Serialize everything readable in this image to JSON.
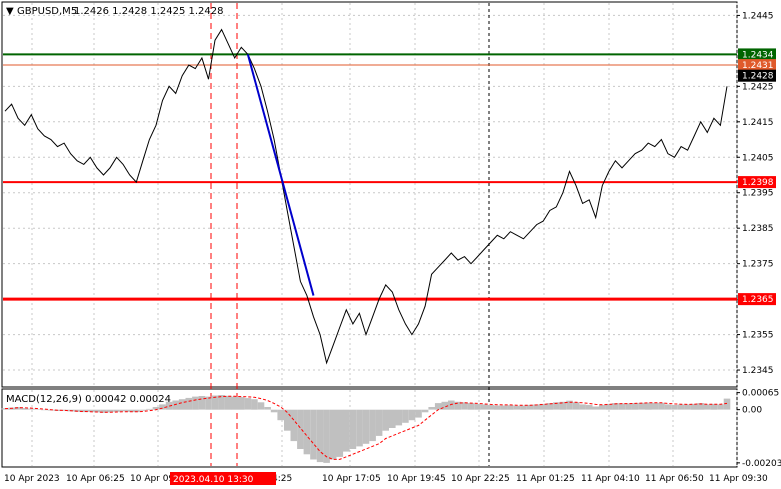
{
  "header": {
    "symbol": "GBPUSD,M5",
    "ohlc": "1.2426 1.2428 1.2425 1.2428"
  },
  "macd_panel": {
    "label": "MACD(12,26,9) 0.00042 0.00024"
  },
  "cursor_label": "2023.04.10 13:30",
  "colors": {
    "price_line": "#000000",
    "resistance_green": "#006400",
    "level_red": "#ff0000",
    "level_orange": "#e05a2b",
    "trend_blue": "#0000cc",
    "macd_hist": "#c0c0c0",
    "macd_signal": "#ff0000",
    "grid": "#c8c8c8"
  },
  "chart_data": [
    {
      "type": "line",
      "panel": "price",
      "y_ticks": [
        "1.2445",
        "1.2425",
        "1.2415",
        "1.2405",
        "1.2395",
        "1.2385",
        "1.2375",
        "1.2365",
        "1.2355",
        "1.2345"
      ],
      "x_ticks": [
        "10 Apr 2023",
        "10 Apr 06:25",
        "10 Apr 09:",
        "pr 14:25",
        "10 Apr 17:05",
        "10 Apr 19:45",
        "10 Apr 22:25",
        "11 Apr 01:25",
        "11 Apr 04:10",
        "11 Apr 06:50",
        "11 Apr 09:30"
      ],
      "ylim": [
        1.23405,
        1.24485
      ],
      "grid": true,
      "levels": [
        {
          "value": 1.2434,
          "label": "1.2434",
          "color": "#006400"
        },
        {
          "value": 1.2431,
          "label": "1.2431",
          "color": "#e05a2b"
        },
        {
          "value": 1.2428,
          "label": "1.2428",
          "color": "#000000"
        },
        {
          "value": 1.2398,
          "label": "1.2398",
          "color": "#ff0000"
        },
        {
          "value": 1.2365,
          "label": "1.2365",
          "color": "#ff0000"
        }
      ],
      "close_series": [
        1.2418,
        1.242,
        1.2416,
        1.2414,
        1.2417,
        1.2413,
        1.2411,
        1.241,
        1.2408,
        1.2409,
        1.2406,
        1.2404,
        1.2403,
        1.2405,
        1.2402,
        1.24,
        1.2402,
        1.2405,
        1.2403,
        1.24,
        1.2398,
        1.2404,
        1.241,
        1.2414,
        1.2421,
        1.2425,
        1.2423,
        1.2428,
        1.2431,
        1.243,
        1.2433,
        1.2427,
        1.2438,
        1.2441,
        1.2437,
        1.2433,
        1.2436,
        1.2434,
        1.243,
        1.2425,
        1.2418,
        1.241,
        1.24,
        1.239,
        1.238,
        1.237,
        1.2366,
        1.236,
        1.2355,
        1.2347,
        1.2352,
        1.2357,
        1.2362,
        1.2358,
        1.2361,
        1.2355,
        1.236,
        1.2365,
        1.2369,
        1.2367,
        1.2362,
        1.2358,
        1.2355,
        1.2358,
        1.2363,
        1.2372,
        1.2374,
        1.2376,
        1.2378,
        1.2376,
        1.2377,
        1.2375,
        1.2377,
        1.2379,
        1.2381,
        1.2383,
        1.2382,
        1.2384,
        1.2383,
        1.2382,
        1.2384,
        1.2386,
        1.2387,
        1.239,
        1.2391,
        1.2395,
        1.2401,
        1.2397,
        1.2392,
        1.2393,
        1.2388,
        1.2397,
        1.2401,
        1.2404,
        1.2402,
        1.2404,
        1.2406,
        1.2407,
        1.2409,
        1.2408,
        1.241,
        1.2406,
        1.2405,
        1.2408,
        1.2407,
        1.2411,
        1.2415,
        1.2412,
        1.2416,
        1.2414,
        1.2425
      ],
      "trend_line": {
        "from": {
          "bar": 37,
          "value": 1.2434
        },
        "to": {
          "bar": 47,
          "value": 1.2366
        }
      }
    },
    {
      "type": "bar",
      "panel": "macd",
      "title": "MACD(12,26,9)",
      "y_ticks": [
        "0.00065",
        "0.00",
        "-0.00203"
      ],
      "ylim": [
        -0.00215,
        0.00075
      ],
      "histogram": [
        5e-05,
        8e-05,
        0.0001,
        6e-05,
        4e-05,
        2e-05,
        0.0,
        -3e-05,
        -5e-05,
        -4e-05,
        -6e-05,
        -8e-05,
        -9e-05,
        -8e-05,
        -0.0001,
        -0.00012,
        -0.0001,
        -8e-05,
        -6e-05,
        -8e-05,
        -9e-05,
        -4e-05,
        3e-05,
        0.0001,
        0.0002,
        0.0003,
        0.00035,
        0.0004,
        0.00045,
        0.0005,
        0.00052,
        0.0005,
        0.00054,
        0.00056,
        0.00053,
        0.0005,
        0.00048,
        0.00044,
        0.0004,
        0.00028,
        0.0001,
        -0.0001,
        -0.0004,
        -0.0008,
        -0.0012,
        -0.0015,
        -0.0017,
        -0.0019,
        -0.002,
        -0.00203,
        -0.0019,
        -0.0018,
        -0.0016,
        -0.0015,
        -0.0014,
        -0.0013,
        -0.0012,
        -0.001,
        -0.0008,
        -0.0007,
        -0.0006,
        -0.0005,
        -0.0004,
        -0.0003,
        -0.0001,
        0.0001,
        0.00025,
        0.0003,
        0.00035,
        0.0003,
        0.00028,
        0.00025,
        0.00022,
        0.0002,
        0.00018,
        0.00016,
        0.00016,
        0.00017,
        0.00015,
        0.00016,
        0.00018,
        0.0002,
        0.00022,
        0.00025,
        0.00028,
        0.0003,
        0.00034,
        0.00028,
        0.0002,
        0.00018,
        0.00012,
        0.00018,
        0.00022,
        0.00025,
        0.00024,
        0.00024,
        0.00025,
        0.00026,
        0.00027,
        0.00026,
        0.00026,
        0.0002,
        0.00018,
        0.0002,
        0.0002,
        0.00022,
        0.00025,
        0.0002,
        0.00022,
        0.0002,
        0.00042
      ],
      "signal": [
        4e-05,
        5e-05,
        7e-05,
        7e-05,
        6e-05,
        4e-05,
        2e-05,
        0.0,
        -2e-05,
        -3e-05,
        -4e-05,
        -6e-05,
        -7e-05,
        -8e-05,
        -9e-05,
        -0.0001,
        -0.0001,
        -9e-05,
        -8e-05,
        -8e-05,
        -8e-05,
        -7e-05,
        -4e-05,
        0.0,
        6e-05,
        0.00013,
        0.0002,
        0.00027,
        0.00032,
        0.00037,
        0.00041,
        0.00044,
        0.00047,
        0.0005,
        0.00051,
        0.00051,
        0.0005,
        0.00049,
        0.00047,
        0.00042,
        0.00035,
        0.00024,
        0.0001,
        -0.0001,
        -0.0004,
        -0.0007,
        -0.001,
        -0.0013,
        -0.0016,
        -0.0018,
        -0.0019,
        -0.0019,
        -0.0018,
        -0.0017,
        -0.0016,
        -0.0015,
        -0.0014,
        -0.0013,
        -0.0011,
        -0.001,
        -0.0009,
        -0.0008,
        -0.0007,
        -0.0006,
        -0.0004,
        -0.0002,
        0.0,
        0.0001,
        0.0002,
        0.00025,
        0.00026,
        0.00025,
        0.00024,
        0.00022,
        0.0002,
        0.00019,
        0.00018,
        0.00018,
        0.00017,
        0.00017,
        0.00017,
        0.00018,
        0.0002,
        0.00022,
        0.00024,
        0.00026,
        0.00028,
        0.00028,
        0.00026,
        0.00024,
        0.0002,
        0.00019,
        0.0002,
        0.00022,
        0.00023,
        0.00023,
        0.00024,
        0.00025,
        0.00026,
        0.00026,
        0.00026,
        0.00024,
        0.00022,
        0.00021,
        0.0002,
        0.00021,
        0.00022,
        0.00021,
        0.00021,
        0.00021,
        0.00024
      ]
    }
  ]
}
